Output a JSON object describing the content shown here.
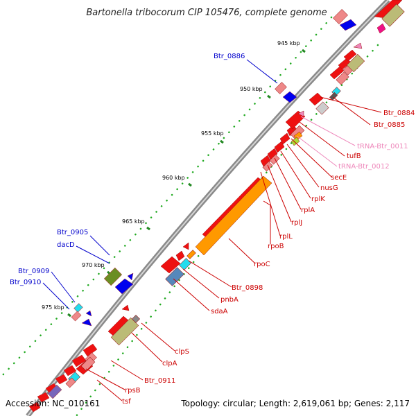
{
  "title": "Bartonella tribocorum CIP 105476, complete genome",
  "footer": {
    "accession": "Accession: NC_010161",
    "summary": "Topology: circular; Length: 2,619,061 bp; Genes: 2,117"
  },
  "kbp_ticks": [
    "945 kbp",
    "950 kbp",
    "955 kbp",
    "960 kbp",
    "965 kbp",
    "970 kbp",
    "975 kbp"
  ],
  "labels_top": [
    "Btr_0886",
    "Btr_0905",
    "dacD",
    "Btr_0909",
    "Btr_0910"
  ],
  "labels_right": [
    "Btr_0884",
    "Btr_0885",
    "tRNA-Btr_0011",
    "tufB",
    "tRNA-Btr_0012",
    "secE",
    "nusG",
    "rplK",
    "rplA",
    "rplJ",
    "rplL",
    "rpoB",
    "rpoC",
    "Btr_0898",
    "pnbA",
    "sdaA",
    "clpS",
    "clpA",
    "Btr_0911",
    "rpsB",
    "tsf"
  ],
  "colors": {
    "gene_red": "#ee1111",
    "gene_pink": "#ee8888",
    "gene_orange": "#ff9900",
    "gene_olive": "#bbbb77",
    "gene_blue": "#0000ee",
    "gene_cyan": "#22ddee",
    "trna_pink": "#ee88bb",
    "label_red": "#cc0000",
    "label_blue": "#0000cc",
    "label_pink": "#ee88bb",
    "backbone": "#888888"
  }
}
